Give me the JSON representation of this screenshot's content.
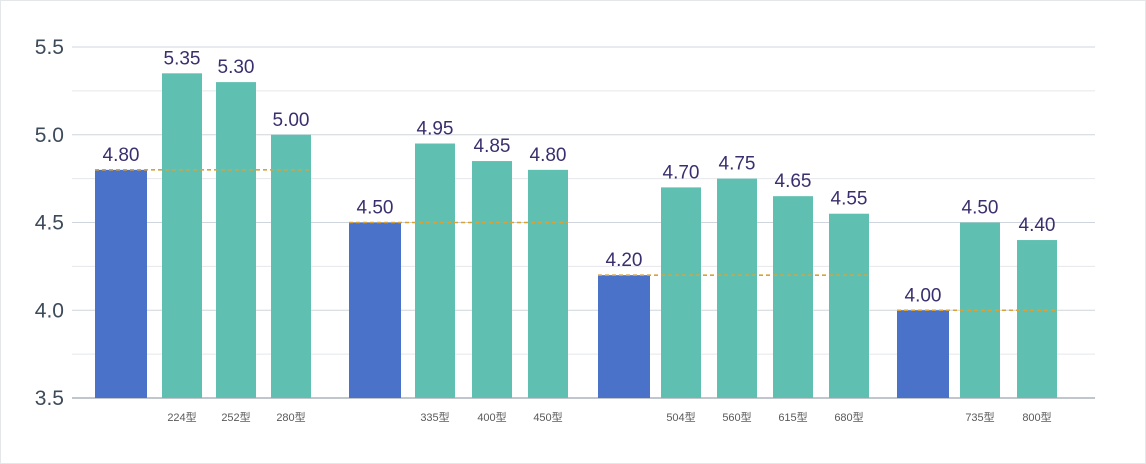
{
  "chart_data": {
    "type": "bar",
    "title": "",
    "xlabel": "",
    "ylabel": "",
    "ylim": [
      3.5,
      5.5
    ],
    "yticks": [
      "3.5",
      "4.0",
      "4.5",
      "5.0",
      "5.5"
    ],
    "colors": {
      "base": "#4a72c8",
      "model": "#5fbfb0",
      "reference": "#d8a23a"
    },
    "groups": [
      {
        "base": {
          "value": 4.8,
          "label": "4.80"
        },
        "bars": [
          {
            "category": "224型",
            "value": 5.35,
            "label": "5.35"
          },
          {
            "category": "252型",
            "value": 5.3,
            "label": "5.30"
          },
          {
            "category": "280型",
            "value": 5.0,
            "label": "5.00"
          }
        ]
      },
      {
        "base": {
          "value": 4.5,
          "label": "4.50"
        },
        "bars": [
          {
            "category": "335型",
            "value": 4.95,
            "label": "4.95"
          },
          {
            "category": "400型",
            "value": 4.85,
            "label": "4.85"
          },
          {
            "category": "450型",
            "value": 4.8,
            "label": "4.80"
          }
        ]
      },
      {
        "base": {
          "value": 4.2,
          "label": "4.20"
        },
        "bars": [
          {
            "category": "504型",
            "value": 4.7,
            "label": "4.70"
          },
          {
            "category": "560型",
            "value": 4.75,
            "label": "4.75"
          },
          {
            "category": "615型",
            "value": 4.65,
            "label": "4.65"
          },
          {
            "category": "680型",
            "value": 4.55,
            "label": "4.55"
          }
        ]
      },
      {
        "base": {
          "value": 4.0,
          "label": "4.00"
        },
        "bars": [
          {
            "category": "735型",
            "value": 4.5,
            "label": "4.50"
          },
          {
            "category": "800型",
            "value": 4.4,
            "label": "4.40"
          }
        ]
      }
    ]
  }
}
